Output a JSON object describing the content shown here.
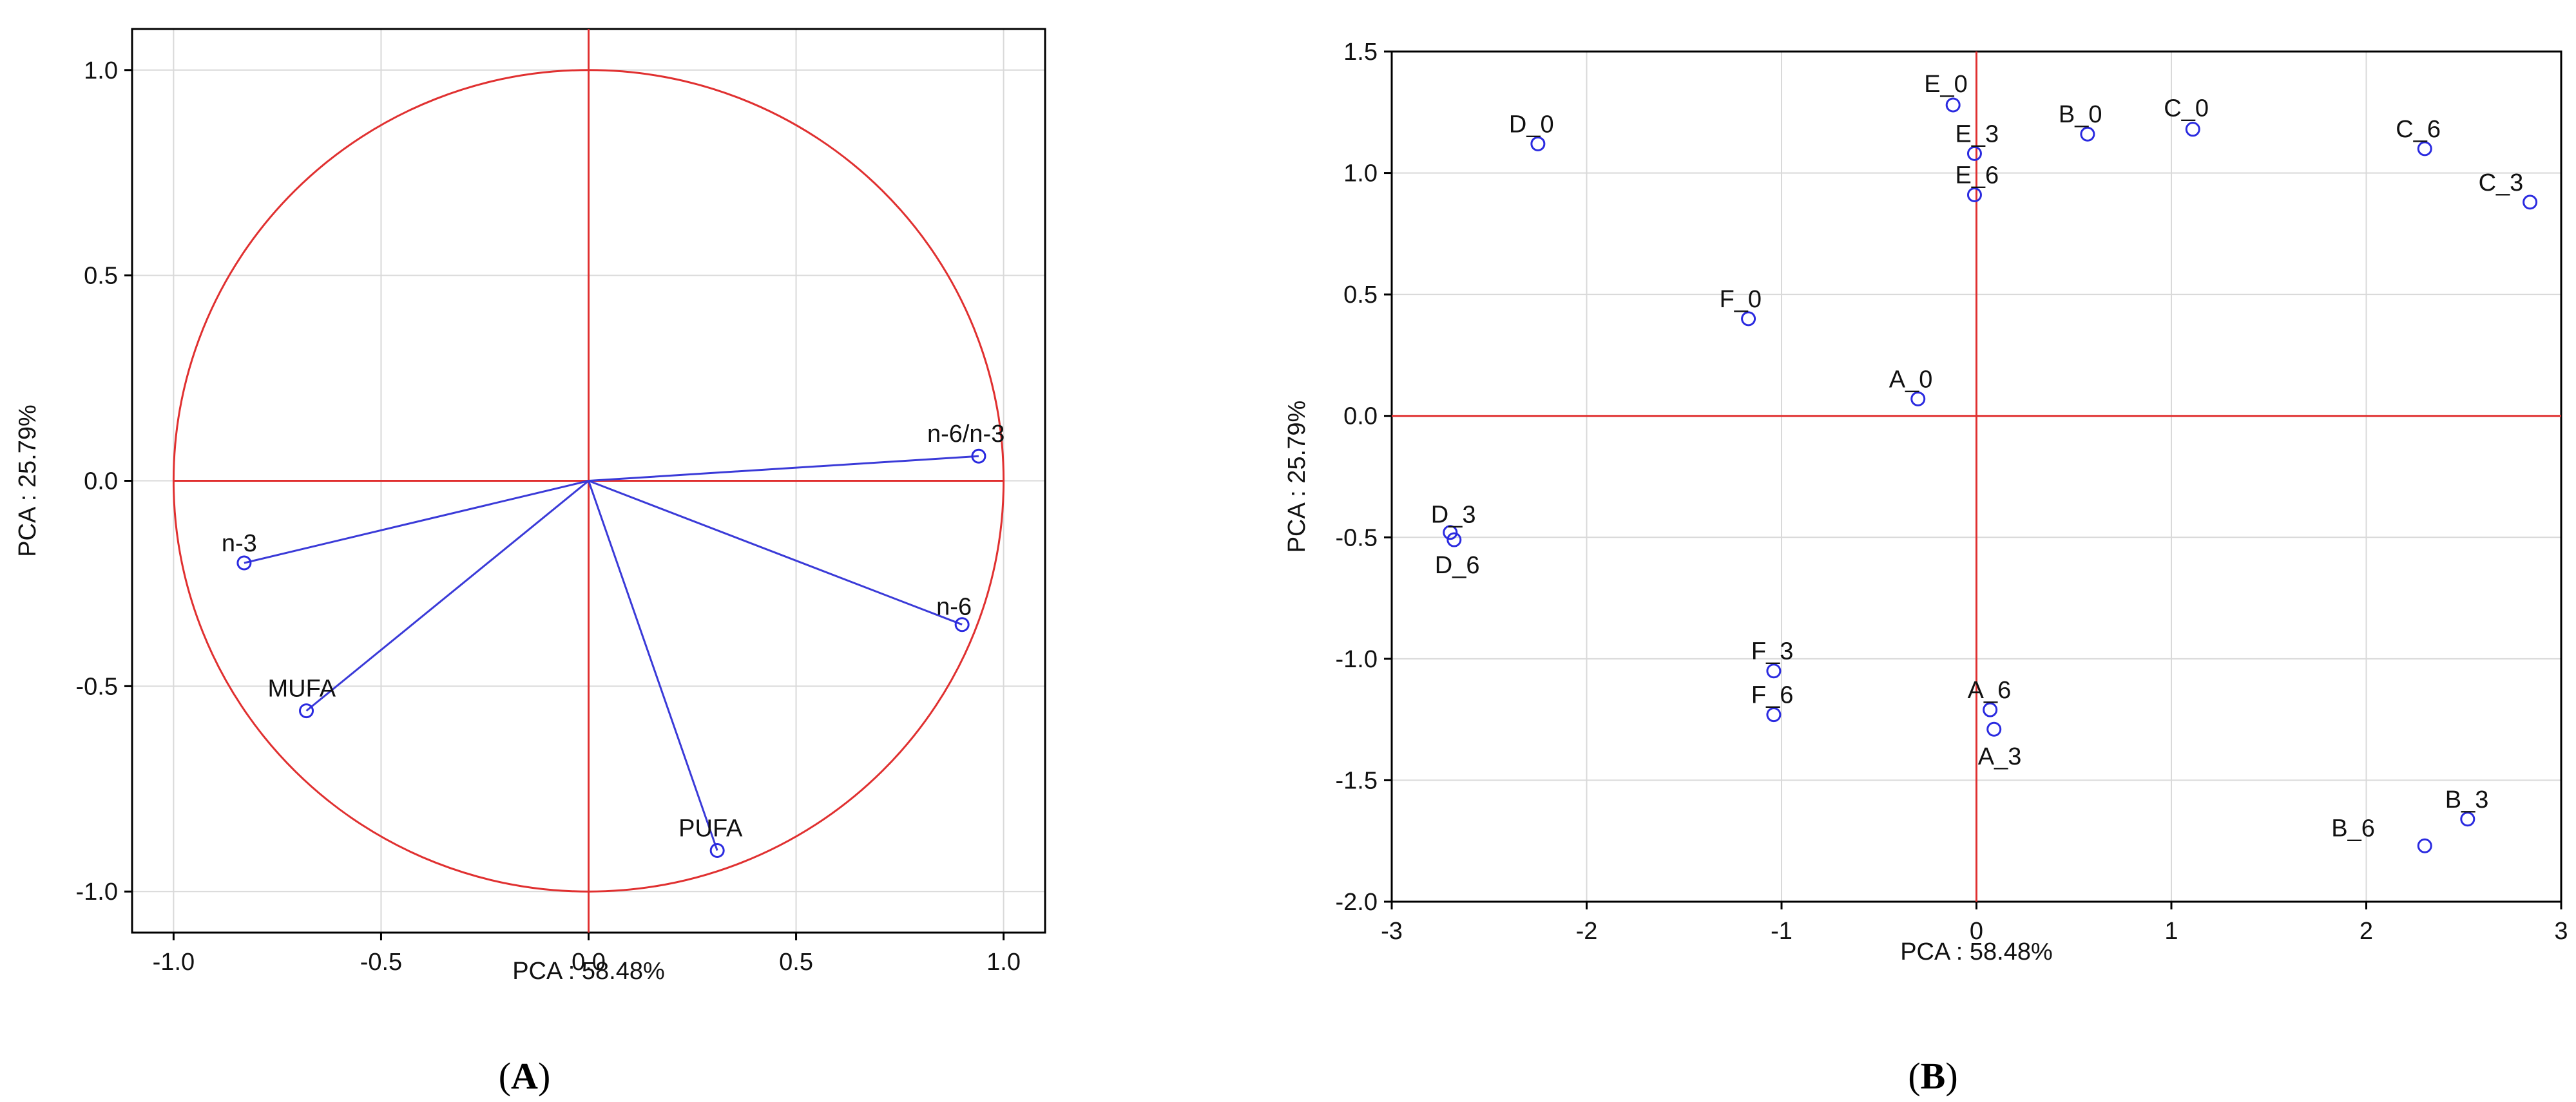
{
  "chart_data": [
    {
      "panel": "A",
      "type": "scatter",
      "subtype": "pca-loadings-circle",
      "xlabel": "PCA : 58.48%",
      "ylabel": "PCA : 25.79%",
      "xlim": [
        -1.1,
        1.1
      ],
      "ylim": [
        -1.1,
        1.1
      ],
      "xticks": [
        -1.0,
        -0.5,
        0.0,
        0.5,
        1.0
      ],
      "xtick_labels": [
        "-1.0",
        "-0.5",
        "0.0",
        "0.5",
        "1.0"
      ],
      "yticks": [
        -1.0,
        -0.5,
        0.0,
        0.5,
        1.0
      ],
      "ytick_labels": [
        "-1.0",
        "-0.5",
        "0.0",
        "0.5",
        "1.0"
      ],
      "grid": true,
      "circle_radius": 1.0,
      "points": [
        {
          "label": "n-6/n-3",
          "x": 0.94,
          "y": 0.06
        },
        {
          "label": "n-3",
          "x": -0.83,
          "y": -0.2
        },
        {
          "label": "n-6",
          "x": 0.9,
          "y": -0.35
        },
        {
          "label": "MUFA",
          "x": -0.68,
          "y": -0.56
        },
        {
          "label": "PUFA",
          "x": 0.31,
          "y": -0.9
        }
      ],
      "panel_label": "A"
    },
    {
      "panel": "B",
      "type": "scatter",
      "subtype": "pca-scores",
      "xlabel": "PCA : 58.48%",
      "ylabel": "PCA : 25.79%",
      "xlim": [
        -3,
        3
      ],
      "ylim": [
        -2.0,
        1.5
      ],
      "xticks": [
        -3,
        -2,
        -1,
        0,
        1,
        2,
        3
      ],
      "xtick_labels": [
        "-3",
        "-2",
        "-1",
        "0",
        "1",
        "2",
        "3"
      ],
      "yticks": [
        -2.0,
        -1.5,
        -1.0,
        -0.5,
        0.0,
        0.5,
        1.0,
        1.5
      ],
      "ytick_labels": [
        "-2.0",
        "-1.5",
        "-1.0",
        "-0.5",
        "0.0",
        "0.5",
        "1.0",
        "1.5"
      ],
      "grid": true,
      "points": [
        {
          "label": "D_0",
          "x": -2.25,
          "y": 1.12
        },
        {
          "label": "E_0",
          "x": -0.12,
          "y": 1.28
        },
        {
          "label": "E_3",
          "x": -0.01,
          "y": 1.08
        },
        {
          "label": "E_6",
          "x": -0.01,
          "y": 0.91
        },
        {
          "label": "B_0",
          "x": 0.57,
          "y": 1.16
        },
        {
          "label": "C_0",
          "x": 1.11,
          "y": 1.18
        },
        {
          "label": "C_6",
          "x": 2.3,
          "y": 1.1
        },
        {
          "label": "C_3",
          "x": 2.84,
          "y": 0.88
        },
        {
          "label": "F_0",
          "x": -1.17,
          "y": 0.4
        },
        {
          "label": "A_0",
          "x": -0.3,
          "y": 0.07
        },
        {
          "label": "D_3",
          "x": -2.7,
          "y": -0.48
        },
        {
          "label": "D_6",
          "x": -2.68,
          "y": -0.51
        },
        {
          "label": "F_3",
          "x": -1.04,
          "y": -1.05
        },
        {
          "label": "F_6",
          "x": -1.04,
          "y": -1.23
        },
        {
          "label": "A_6",
          "x": 0.07,
          "y": -1.21
        },
        {
          "label": "A_3",
          "x": 0.09,
          "y": -1.29
        },
        {
          "label": "B_3",
          "x": 2.52,
          "y": -1.66
        },
        {
          "label": "B_6",
          "x": 2.3,
          "y": -1.77
        }
      ],
      "panel_label": "B"
    }
  ],
  "colors": {
    "axis_lines": "#e03030",
    "circle": "#e03030",
    "vectors": "#3a3ad8",
    "markers": "#2a2ae0",
    "grid": "#d9d9d9",
    "frame": "#000000"
  }
}
